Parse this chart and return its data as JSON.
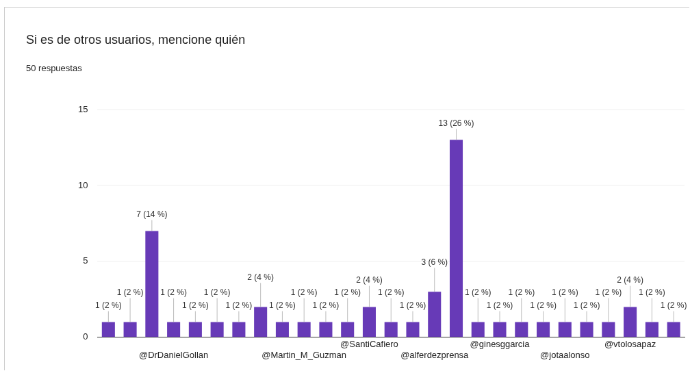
{
  "chart_data": {
    "type": "bar",
    "title": "Si es de otros usuarios, mencione quién",
    "subtitle": "50 respuestas",
    "categories": [
      null,
      null,
      null,
      "@DrDanielGollan",
      null,
      null,
      null,
      null,
      null,
      "@Martin_M_Guzman",
      null,
      null,
      "@SantiCafiero",
      null,
      null,
      "@alferdezprensa",
      null,
      null,
      "@ginesggarcia",
      null,
      null,
      "@jotaalonso",
      null,
      null,
      "@vtolosapaz",
      null,
      null
    ],
    "values": [
      1,
      1,
      7,
      1,
      1,
      1,
      1,
      2,
      1,
      1,
      1,
      1,
      2,
      1,
      1,
      3,
      13,
      1,
      1,
      1,
      1,
      1,
      1,
      1,
      2,
      1,
      1
    ],
    "value_labels": [
      "1 (2 %)",
      "1 (2 %)",
      "7 (14 %)",
      "1 (2 %)",
      "1 (2 %)",
      "1 (2 %)",
      "1 (2 %)",
      "2 (4 %)",
      "1 (2 %)",
      "1 (2 %)",
      "1 (2 %)",
      "1 (2 %)",
      "2 (4 %)",
      "1 (2 %)",
      "1 (2 %)",
      "3 (6 %)",
      "13 (26 %)",
      "1 (2 %)",
      "1 (2 %)",
      "1 (2 %)",
      "1 (2 %)",
      "1 (2 %)",
      "1 (2 %)",
      "1 (2 %)",
      "2 (4 %)",
      "1 (2 %)",
      "1 (2 %)"
    ],
    "color": "#673ab7",
    "ylim": [
      0,
      15
    ],
    "yticks": [
      0,
      5,
      10,
      15
    ],
    "grid": "y",
    "legend": false
  }
}
